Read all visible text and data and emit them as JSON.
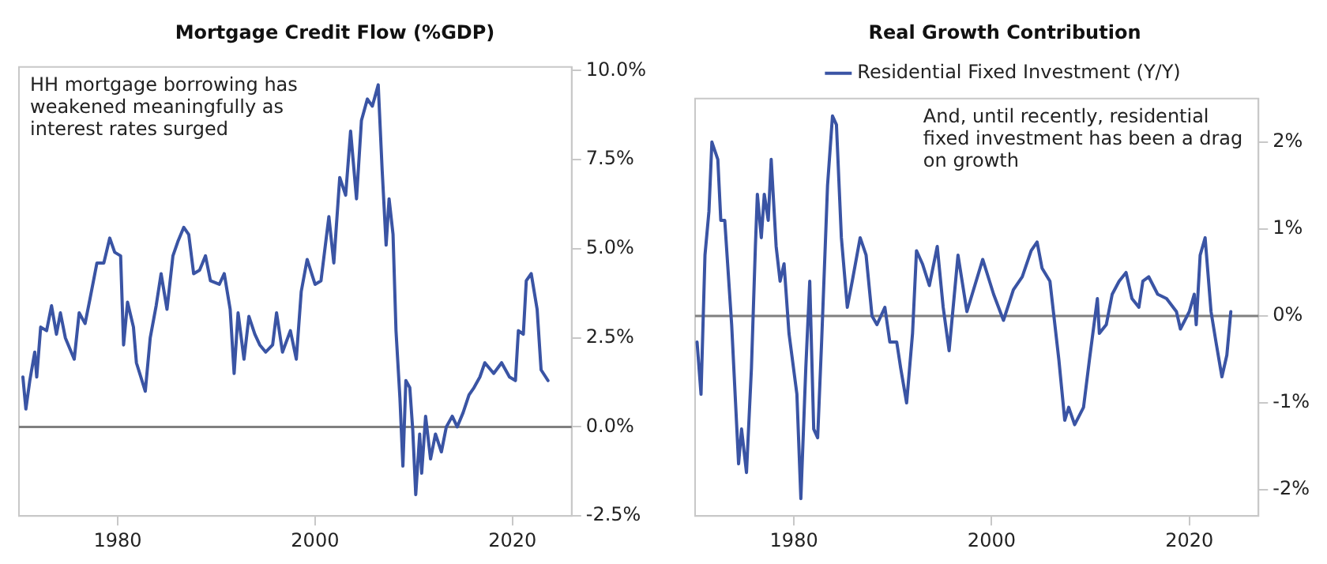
{
  "chart_data": [
    {
      "type": "line",
      "title": "Mortgage Credit Flow (%GDP)",
      "annotations": [
        "HH mortgage borrowing has weakened meaningfully as interest rates surged"
      ],
      "legend": false,
      "grid": false,
      "marker": "none",
      "xlim": [
        1970,
        2026
      ],
      "xticks": [
        1980,
        2000,
        2020
      ],
      "ylim": [
        -2.5,
        10.1
      ],
      "yticks": [
        {
          "value": -2.5,
          "label": "-2.5%"
        },
        {
          "value": 0,
          "label": "0.0%"
        },
        {
          "value": 2.5,
          "label": "2.5%"
        },
        {
          "value": 5,
          "label": "5.0%"
        },
        {
          "value": 7.5,
          "label": "7.5%"
        },
        {
          "value": 10,
          "label": "10.0%"
        }
      ],
      "ref_lines": [
        {
          "axis": "y",
          "value": 0,
          "color": "#808080"
        }
      ],
      "x": [
        1970.4,
        1970.7,
        1971.1,
        1971.6,
        1971.8,
        1972.2,
        1972.8,
        1973.3,
        1973.8,
        1974.2,
        1974.7,
        1975.6,
        1976.1,
        1976.7,
        1977.2,
        1977.9,
        1978.6,
        1979.2,
        1979.7,
        1980.3,
        1980.6,
        1981.0,
        1981.6,
        1981.9,
        1982.8,
        1983.3,
        1983.9,
        1984.4,
        1985.0,
        1985.6,
        1986.1,
        1986.7,
        1987.2,
        1987.7,
        1988.3,
        1988.9,
        1989.4,
        1990.3,
        1990.8,
        1991.4,
        1991.8,
        1992.2,
        1992.8,
        1993.3,
        1993.9,
        1994.4,
        1995.0,
        1995.7,
        1996.1,
        1996.7,
        1997.5,
        1998.1,
        1998.6,
        1999.2,
        2000.0,
        2000.6,
        2001.4,
        2001.9,
        2002.5,
        2003.1,
        2003.6,
        2004.2,
        2004.7,
        2005.3,
        2005.8,
        2006.4,
        2006.8,
        2007.2,
        2007.5,
        2007.9,
        2008.2,
        2008.6,
        2008.9,
        2009.2,
        2009.6,
        2009.9,
        2010.2,
        2010.6,
        2010.8,
        2011.2,
        2011.7,
        2012.2,
        2012.8,
        2013.3,
        2013.9,
        2014.4,
        2015.0,
        2015.6,
        2016.1,
        2016.7,
        2017.2,
        2018.1,
        2018.9,
        2019.7,
        2020.3,
        2020.6,
        2021.1,
        2021.4,
        2021.9,
        2022.5,
        2022.9,
        2023.6
      ],
      "series": [
        {
          "color": "#3a54a4",
          "values": [
            1.4,
            0.5,
            1.3,
            2.1,
            1.4,
            2.8,
            2.7,
            3.4,
            2.6,
            3.2,
            2.5,
            1.9,
            3.2,
            2.9,
            3.6,
            4.6,
            4.6,
            5.3,
            4.9,
            4.8,
            2.3,
            3.5,
            2.8,
            1.8,
            1.0,
            2.5,
            3.4,
            4.3,
            3.3,
            4.8,
            5.2,
            5.6,
            5.4,
            4.3,
            4.4,
            4.8,
            4.1,
            4.0,
            4.3,
            3.3,
            1.5,
            3.2,
            1.9,
            3.1,
            2.6,
            2.3,
            2.1,
            2.3,
            3.2,
            2.1,
            2.7,
            1.9,
            3.8,
            4.7,
            4.0,
            4.1,
            5.9,
            4.6,
            7.0,
            6.5,
            8.3,
            6.4,
            8.6,
            9.2,
            9.0,
            9.6,
            7.2,
            5.1,
            6.4,
            5.4,
            2.7,
            0.8,
            -1.1,
            1.3,
            1.1,
            -0.1,
            -1.9,
            -0.2,
            -1.3,
            0.3,
            -0.9,
            -0.2,
            -0.7,
            0,
            0.3,
            0,
            0.4,
            0.9,
            1.1,
            1.4,
            1.8,
            1.5,
            1.8,
            1.4,
            1.3,
            2.7,
            2.6,
            4.1,
            4.3,
            3.3,
            1.6,
            1.3
          ]
        }
      ]
    },
    {
      "type": "line",
      "title": "Real Growth Contribution",
      "annotations": [
        "And, until recently, residential fixed investment has been a drag on growth"
      ],
      "legend": "top",
      "grid": false,
      "marker": "none",
      "xlim": [
        1970,
        2027
      ],
      "xticks": [
        1980,
        2000,
        2020
      ],
      "ylim": [
        -2.3,
        2.5
      ],
      "yticks": [
        {
          "value": -2,
          "label": "-2%"
        },
        {
          "value": -1,
          "label": "-1%"
        },
        {
          "value": 0,
          "label": "0%"
        },
        {
          "value": 1,
          "label": "1%"
        },
        {
          "value": 2,
          "label": "2%"
        }
      ],
      "ref_lines": [
        {
          "axis": "y",
          "value": 0,
          "color": "#808080"
        }
      ],
      "x": [
        1970.2,
        1970.6,
        1971.0,
        1971.4,
        1971.7,
        1972.0,
        1972.3,
        1972.6,
        1973.0,
        1973.7,
        1974.4,
        1974.7,
        1975.2,
        1975.7,
        1976.1,
        1976.3,
        1976.7,
        1977.0,
        1977.4,
        1977.7,
        1978.2,
        1978.6,
        1979.0,
        1979.5,
        1980.3,
        1980.7,
        1981.2,
        1981.6,
        1982.0,
        1982.4,
        1982.8,
        1983.4,
        1983.9,
        1984.3,
        1984.8,
        1985.4,
        1985.9,
        1986.7,
        1987.3,
        1987.9,
        1988.4,
        1989.2,
        1989.7,
        1990.4,
        1990.8,
        1991.4,
        1992.0,
        1992.4,
        1993.0,
        1993.7,
        1994.5,
        1995.1,
        1995.7,
        1996.6,
        1997.5,
        1999.1,
        2000.2,
        2001.2,
        2002.2,
        2003.1,
        2004.0,
        2004.6,
        2005.1,
        2005.9,
        2006.8,
        2007.4,
        2007.8,
        2008.4,
        2009.3,
        2009.9,
        2010.7,
        2010.9,
        2011.6,
        2012.2,
        2012.9,
        2013.6,
        2014.2,
        2014.9,
        2015.3,
        2015.9,
        2016.8,
        2017.7,
        2018.7,
        2019.1,
        2020.0,
        2020.5,
        2020.7,
        2021.1,
        2021.6,
        2022.2,
        2022.7,
        2023.3,
        2023.8,
        2024.2
      ],
      "series": [
        {
          "name": "Residential Fixed Investment (Y/Y)",
          "color": "#3a54a4",
          "values": [
            -0.3,
            -0.9,
            0.7,
            1.2,
            2.0,
            1.9,
            1.8,
            1.1,
            1.1,
            -0.1,
            -1.7,
            -1.3,
            -1.8,
            -0.6,
            0.8,
            1.4,
            0.9,
            1.4,
            1.1,
            1.8,
            0.8,
            0.4,
            0.6,
            -0.2,
            -0.9,
            -2.1,
            -0.6,
            0.4,
            -1.3,
            -1.4,
            -0.3,
            1.5,
            2.3,
            2.2,
            0.9,
            0.1,
            0.4,
            0.9,
            0.7,
            0,
            -0.1,
            0.1,
            -0.3,
            -0.3,
            -0.6,
            -1.0,
            -0.2,
            0.75,
            0.6,
            0.35,
            0.8,
            0.1,
            -0.4,
            0.7,
            0.05,
            0.65,
            0.25,
            -0.05,
            0.3,
            0.45,
            0.75,
            0.85,
            0.55,
            0.4,
            -0.5,
            -1.2,
            -1.05,
            -1.25,
            -1.05,
            -0.5,
            0.2,
            -0.2,
            -0.1,
            0.25,
            0.4,
            0.5,
            0.2,
            0.1,
            0.4,
            0.45,
            0.25,
            0.2,
            0.05,
            -0.15,
            0.05,
            0.25,
            -0.1,
            0.7,
            0.9,
            0.05,
            -0.3,
            -0.7,
            -0.45,
            0.05
          ]
        }
      ]
    }
  ]
}
